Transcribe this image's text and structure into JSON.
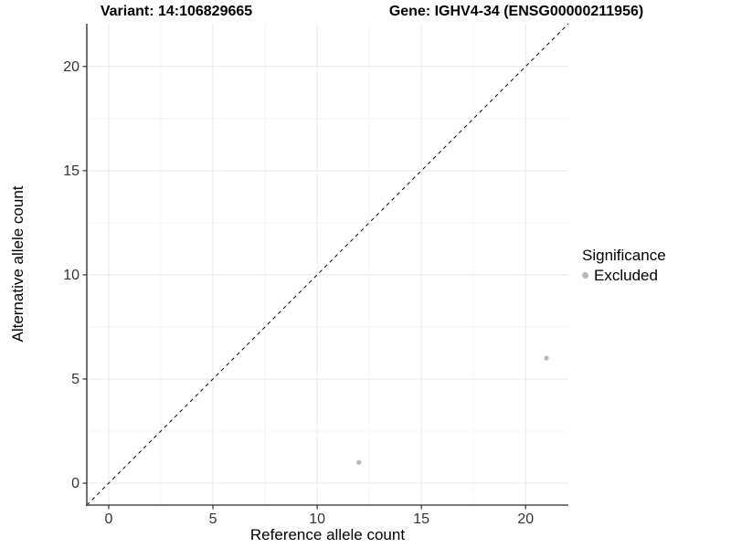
{
  "titles": {
    "variant": "Variant: 14:106829665",
    "gene": "Gene: IGHV4-34 (ENSG00000211956)"
  },
  "chart_data": {
    "type": "scatter",
    "xlabel": "Reference allele count",
    "ylabel": "Alternative allele count",
    "xlim": [
      -1.05,
      22.05
    ],
    "ylim": [
      -1.05,
      22.05
    ],
    "xticks": [
      0,
      5,
      10,
      15,
      20
    ],
    "yticks": [
      0,
      5,
      10,
      15,
      20
    ],
    "minor_ticks": [
      2.5,
      7.5,
      12.5,
      17.5
    ],
    "grid": "major+minor",
    "series": [
      {
        "name": "Excluded",
        "color": "#b9b9b9",
        "points": [
          {
            "x": 12,
            "y": 1
          },
          {
            "x": 21,
            "y": 6
          }
        ]
      }
    ],
    "reference_line": {
      "slope": 1,
      "intercept": 0,
      "linetype": "dashed",
      "color": "#000000"
    },
    "legend": {
      "title": "Significance",
      "position": "right",
      "items": [
        {
          "label": "Excluded",
          "color": "#b9b9b9"
        }
      ]
    }
  },
  "colors": {
    "background": "#ffffff",
    "grid_major": "#e8e8e8",
    "grid_minor": "#f4f4f4",
    "axis_line": "#4d4d4d",
    "tick_mark": "#333333",
    "tick_label": "#333333",
    "point": "#b9b9b9",
    "dashed_line": "#000000"
  }
}
